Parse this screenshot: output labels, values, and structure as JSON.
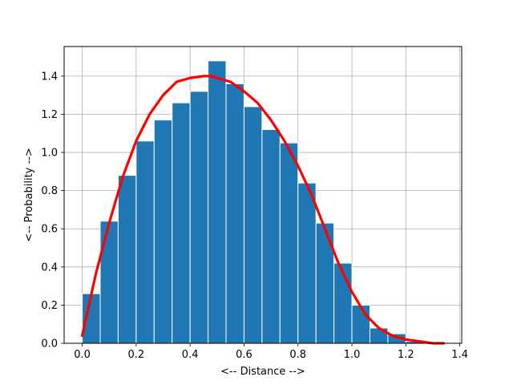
{
  "chart_data": {
    "type": "bar",
    "xlabel": "<-- Distance -->",
    "ylabel": "<-- Probability -->",
    "xlim": [
      -0.067,
      1.407
    ],
    "ylim": [
      0.0,
      1.555
    ],
    "grid": true,
    "xticks": [
      0.0,
      0.2,
      0.4,
      0.6,
      0.8,
      1.0,
      1.2,
      1.4
    ],
    "xtick_labels": [
      "0.0",
      "0.2",
      "0.4",
      "0.6",
      "0.8",
      "1.0",
      "1.2",
      "1.4"
    ],
    "yticks": [
      0.0,
      0.2,
      0.4,
      0.6,
      0.8,
      1.0,
      1.2,
      1.4
    ],
    "ytick_labels": [
      "0.0",
      "0.2",
      "0.4",
      "0.6",
      "0.8",
      "1.0",
      "1.2",
      "1.4"
    ],
    "bar_color": "#1f77b4",
    "bar_edge_color": "#ffffff",
    "curve_color": "#ff0000",
    "histogram": {
      "bin_edges": [
        0.0,
        0.0667,
        0.1333,
        0.2,
        0.2667,
        0.3333,
        0.4,
        0.4667,
        0.5333,
        0.6,
        0.6667,
        0.7333,
        0.8,
        0.8667,
        0.9333,
        1.0,
        1.0667,
        1.1333,
        1.2,
        1.2667,
        1.3333
      ],
      "values": [
        0.26,
        0.64,
        0.88,
        1.06,
        1.17,
        1.26,
        1.32,
        1.48,
        1.36,
        1.24,
        1.12,
        1.05,
        0.84,
        0.63,
        0.42,
        0.2,
        0.08,
        0.05,
        0.01,
        0.0
      ]
    },
    "curve": {
      "x": [
        0.0,
        0.05,
        0.1,
        0.15,
        0.2,
        0.25,
        0.3,
        0.35,
        0.4,
        0.45,
        0.48,
        0.5,
        0.55,
        0.6,
        0.65,
        0.7,
        0.75,
        0.8,
        0.85,
        0.9,
        0.95,
        1.0,
        1.05,
        1.1,
        1.15,
        1.2,
        1.25,
        1.3,
        1.34
      ],
      "y": [
        0.04,
        0.36,
        0.63,
        0.87,
        1.06,
        1.2,
        1.3,
        1.37,
        1.39,
        1.4,
        1.4,
        1.39,
        1.37,
        1.32,
        1.26,
        1.17,
        1.06,
        0.93,
        0.78,
        0.6,
        0.42,
        0.27,
        0.15,
        0.08,
        0.04,
        0.02,
        0.01,
        0.0,
        0.0
      ]
    }
  }
}
